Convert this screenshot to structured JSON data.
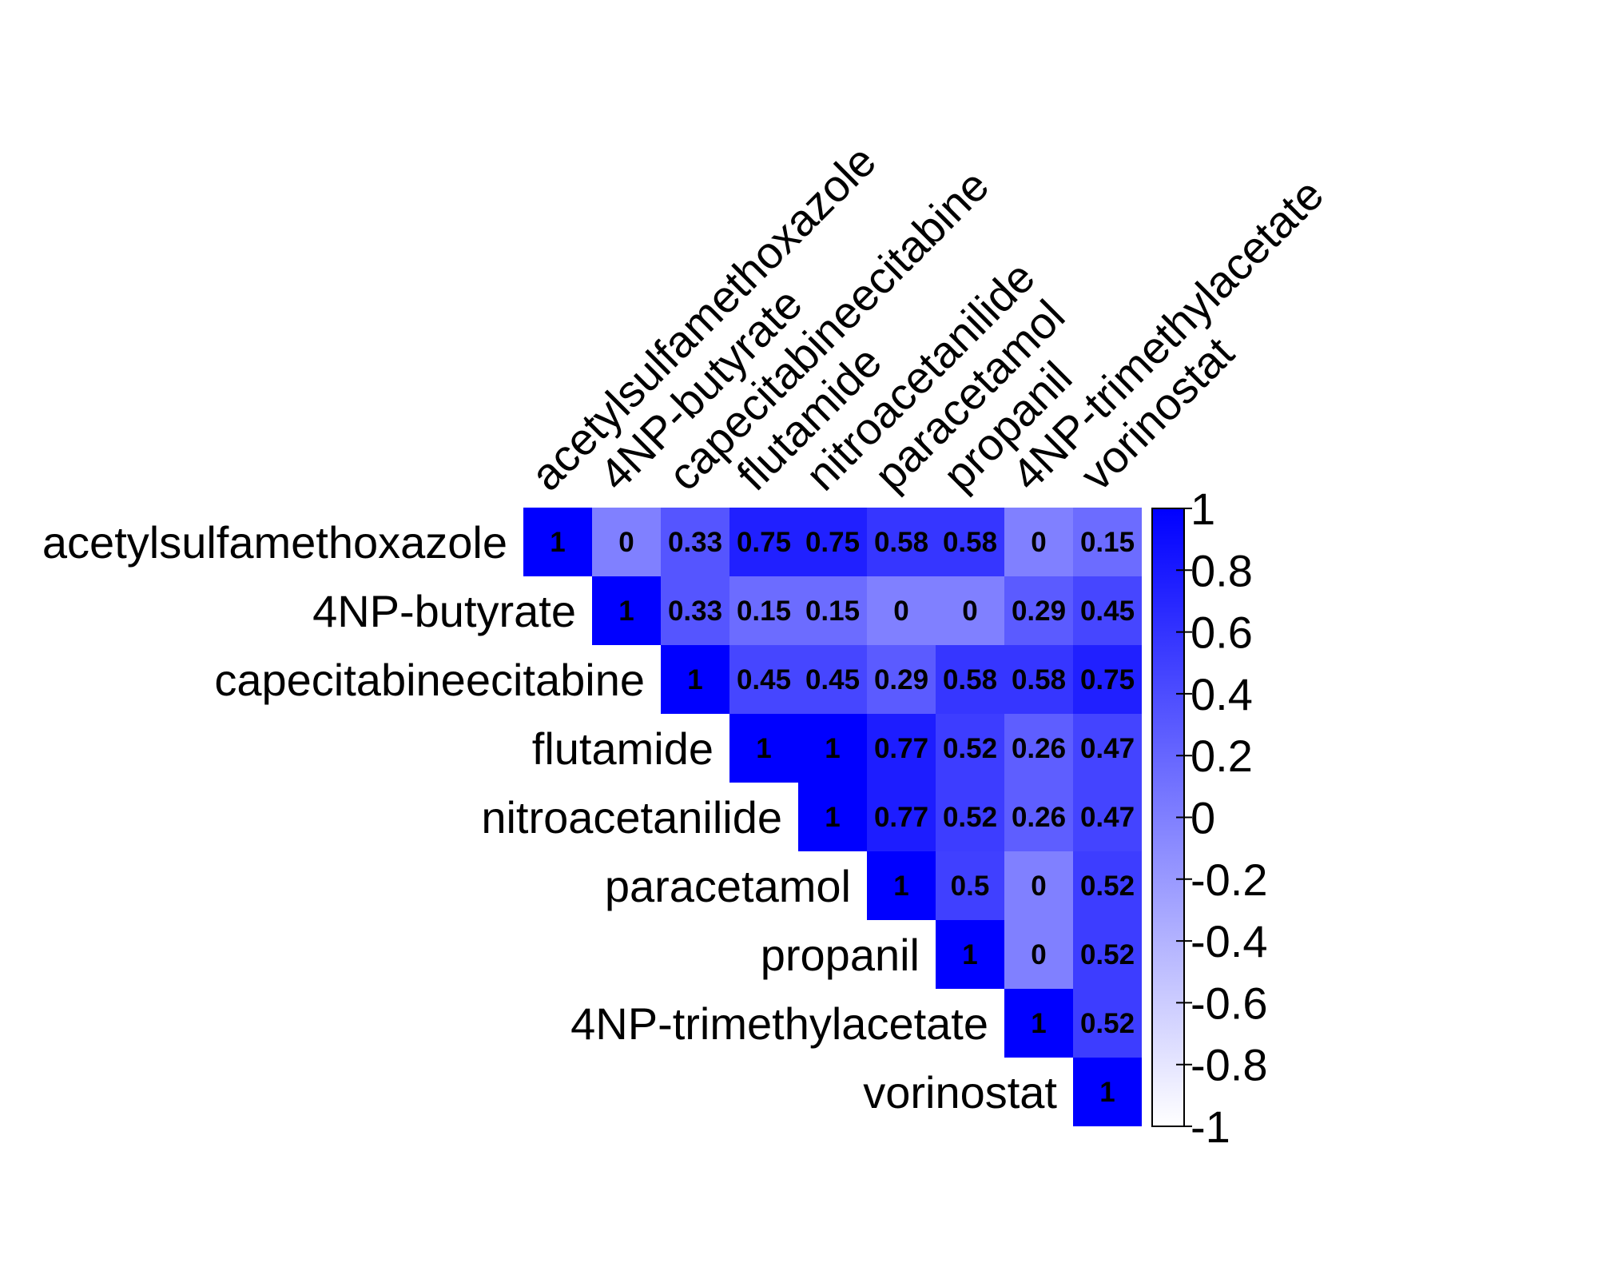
{
  "chart_data": {
    "type": "heatmap",
    "variables": [
      "acetylsulfamethoxazole",
      "4NP-butyrate",
      "capecitabineecitabine",
      "flutamide",
      "nitroacetanilide",
      "paracetamol",
      "propanil",
      "4NP-trimethylacetate",
      "vorinostat"
    ],
    "matrix": [
      [
        1,
        0,
        0.33,
        0.75,
        0.75,
        0.58,
        0.58,
        0,
        0.15
      ],
      [
        null,
        1,
        0.33,
        0.15,
        0.15,
        0,
        0,
        0.29,
        0.45
      ],
      [
        null,
        null,
        1,
        0.45,
        0.45,
        0.29,
        0.58,
        0.58,
        0.75
      ],
      [
        null,
        null,
        null,
        1,
        1,
        0.77,
        0.52,
        0.26,
        0.47
      ],
      [
        null,
        null,
        null,
        null,
        1,
        0.77,
        0.52,
        0.26,
        0.47
      ],
      [
        null,
        null,
        null,
        null,
        null,
        1,
        0.5,
        0,
        0.52
      ],
      [
        null,
        null,
        null,
        null,
        null,
        null,
        1,
        0,
        0.52
      ],
      [
        null,
        null,
        null,
        null,
        null,
        null,
        null,
        1,
        0.52
      ],
      [
        null,
        null,
        null,
        null,
        null,
        null,
        null,
        null,
        1
      ]
    ],
    "cell_labels": [
      [
        "1",
        "0",
        "0.33",
        "0.75",
        "0.75",
        "0.58",
        "0.58",
        "0",
        "0.15"
      ],
      [
        null,
        "1",
        "0.33",
        "0.15",
        "0.15",
        "0",
        "0",
        "0.29",
        "0.45"
      ],
      [
        null,
        null,
        "1",
        "0.45",
        "0.45",
        "0.29",
        "0.58",
        "0.58",
        "0.75"
      ],
      [
        null,
        null,
        null,
        "1",
        "1",
        "0.77",
        "0.52",
        "0.26",
        "0.47"
      ],
      [
        null,
        null,
        null,
        null,
        "1",
        "0.77",
        "0.52",
        "0.26",
        "0.47"
      ],
      [
        null,
        null,
        null,
        null,
        null,
        "1",
        "0.5",
        "0",
        "0.52"
      ],
      [
        null,
        null,
        null,
        null,
        null,
        null,
        "1",
        "0",
        "0.52"
      ],
      [
        null,
        null,
        null,
        null,
        null,
        null,
        null,
        "1",
        "0.52"
      ],
      [
        null,
        null,
        null,
        null,
        null,
        null,
        null,
        null,
        "1"
      ]
    ],
    "layout": "upper-triangle",
    "colorbar": {
      "range": [
        -1,
        1
      ],
      "ticks": [
        "1",
        "0.8",
        "0.6",
        "0.4",
        "0.2",
        "0",
        "-0.2",
        "-0.4",
        "-0.6",
        "-0.8",
        "-1"
      ],
      "colors": {
        "low": "#ffffff",
        "high": "#0000ff"
      }
    }
  }
}
